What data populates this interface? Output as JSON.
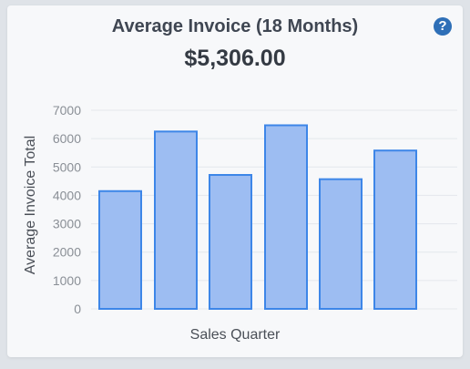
{
  "card": {
    "title": "Average Invoice (18 Months)",
    "amount": "$5,306.00",
    "help_icon": "question-circle-icon",
    "help_glyph": "?"
  },
  "colors": {
    "bar_fill": "#9dbdf2",
    "bar_stroke": "#3d86e8",
    "grid": "#e4e7ec",
    "axis_text": "#8a8f96",
    "label_text": "#4a4f57"
  },
  "chart_data": {
    "type": "bar",
    "title": "Average Invoice (18 Months)",
    "xlabel": "Sales Quarter",
    "ylabel": "Average Invoice Total",
    "categories": [
      "",
      "",
      "",
      "",
      "",
      ""
    ],
    "values": [
      4150,
      6250,
      4720,
      6470,
      4570,
      5580
    ],
    "ylim": [
      0,
      7000
    ],
    "yticks": [
      0,
      1000,
      2000,
      3000,
      4000,
      5000,
      6000,
      7000
    ],
    "grid": true,
    "legend": "none"
  }
}
